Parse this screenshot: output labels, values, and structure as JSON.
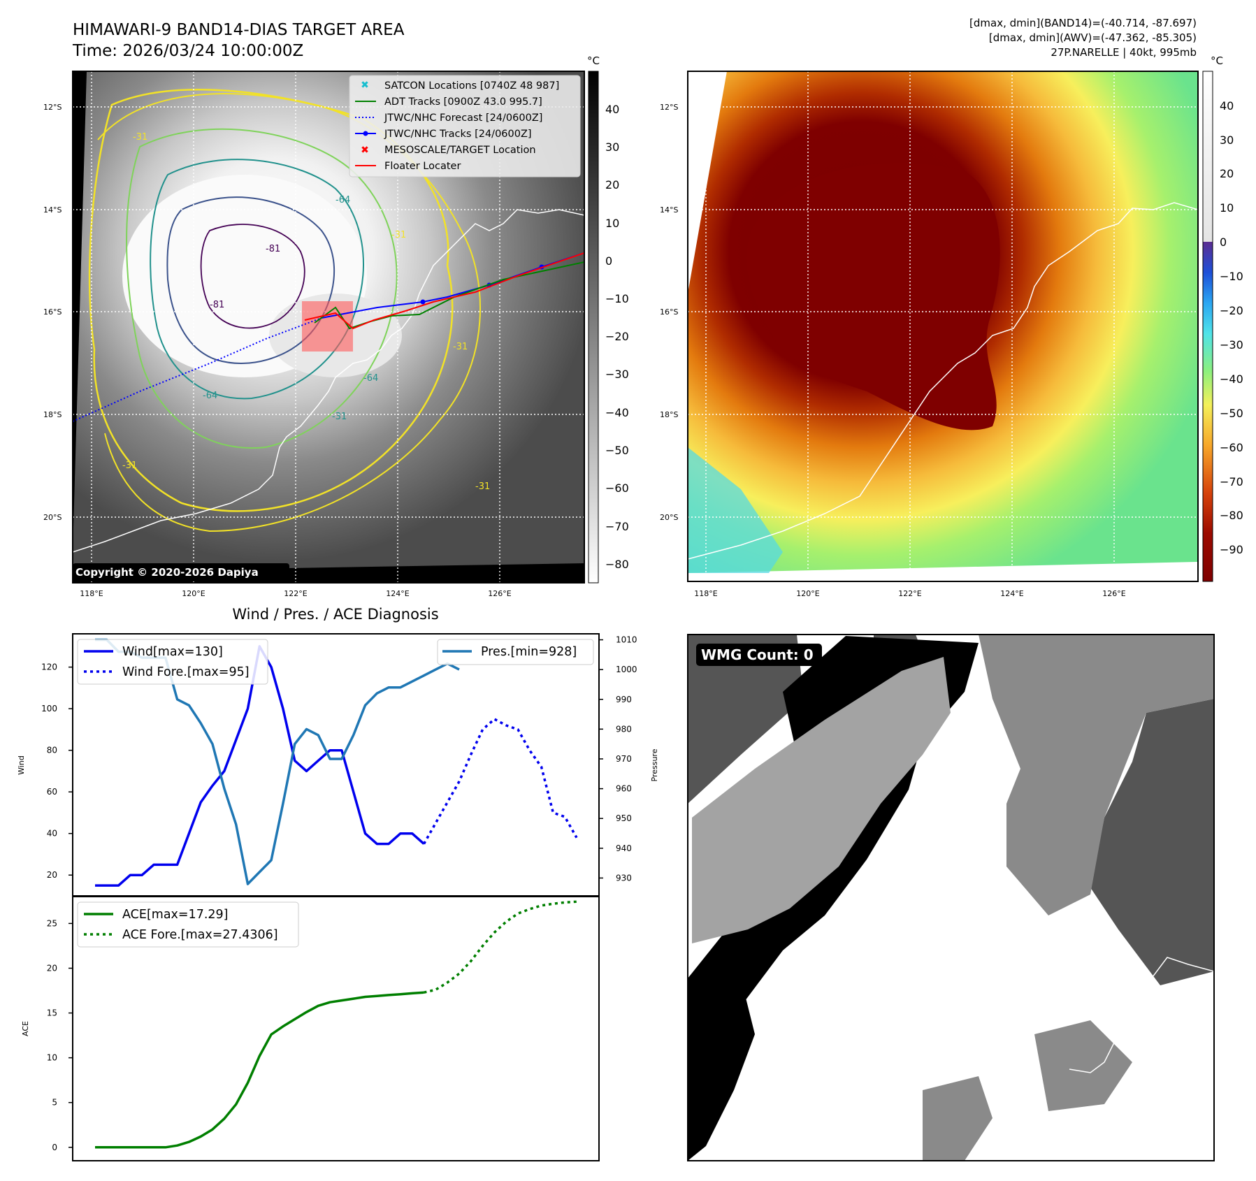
{
  "header": {
    "title_line1": "HIMAWARI-9 BAND14-DIAS TARGET AREA",
    "title_line2": "Time: 2026/03/24 10:00:00Z",
    "info_line1": "[dmax, dmin](BAND14)=(-40.714, -87.697)",
    "info_line2": "[dmax, dmin](AWV)=(-47.362, -85.305)",
    "info_line3": "27P.NARELLE | 40kt, 995mb"
  },
  "copyright": "Copyright © 2020-2026 Dapiya",
  "map_axes": {
    "lat_labels": [
      "12°S",
      "14°S",
      "16°S",
      "18°S",
      "20°S"
    ],
    "lon_labels": [
      "118°E",
      "120°E",
      "122°E",
      "124°E",
      "126°E"
    ]
  },
  "ir_colorbar": {
    "unit": "°C",
    "ticks": [
      "40",
      "30",
      "20",
      "10",
      "0",
      "−10",
      "−20",
      "−30",
      "−40",
      "−50",
      "−60",
      "−70",
      "−80"
    ]
  },
  "wv_colorbar": {
    "unit": "°C",
    "ticks": [
      "40",
      "30",
      "20",
      "10",
      "0",
      "−10",
      "−20",
      "−30",
      "−40",
      "−50",
      "−60",
      "−70",
      "−80",
      "−90"
    ]
  },
  "legend": {
    "satcon": "SATCON Locations [0740Z 48 987]",
    "adt": "ADT Tracks [0900Z 43.0 995.7]",
    "jtwc_forecast": "JTWC/NHC Forecast [24/0600Z]",
    "jtwc_tracks": "JTWC/NHC Tracks [24/0600Z]",
    "meso": "MESOSCALE/TARGET Location",
    "floater": "Floater Locater"
  },
  "contour_labels": [
    "-31",
    "-31",
    "-31",
    "-31",
    "-31",
    "-81",
    "-81",
    "-64",
    "-64",
    "-64",
    "-31"
  ],
  "wmg": {
    "label": "WMG Count: 0"
  },
  "colors": {
    "wind": "#0000ee",
    "pressure": "#1f77b4",
    "ace": "#007f00",
    "adt": "#008000",
    "jtwc": "#0000ff",
    "floater": "#ff0000",
    "satcon": "#17becf"
  },
  "chart_data": [
    {
      "type": "line",
      "title": "Wind / Pres. / ACE Diagnosis",
      "xlabel": "",
      "ylabel": "Wind",
      "ylabel_right": "Pressure",
      "ylim": [
        10,
        136
      ],
      "ylim_right": [
        924,
        1012
      ],
      "yticks": [
        "20",
        "40",
        "60",
        "80",
        "100",
        "120"
      ],
      "yticks_right": [
        "930",
        "940",
        "950",
        "960",
        "970",
        "980",
        "990",
        "1000",
        "1010"
      ],
      "x_range": [
        0,
        41
      ],
      "legend": {
        "wind": "Wind[max=130]",
        "wind_fore": "Wind Fore.[max=95]",
        "pres": "Pres.[min=928]"
      },
      "series": [
        {
          "name": "Wind[max=130]",
          "style": "solid",
          "x": [
            0,
            1,
            2,
            3,
            4,
            5,
            6,
            7,
            8,
            9,
            10,
            11,
            12,
            13,
            14,
            15,
            16,
            17,
            18,
            19,
            20,
            21,
            22,
            23,
            24,
            25,
            26,
            27,
            28
          ],
          "values": [
            15,
            15,
            15,
            20,
            20,
            25,
            25,
            25,
            40,
            55,
            63,
            70,
            85,
            100,
            130,
            120,
            100,
            75,
            70,
            75,
            80,
            80,
            60,
            40,
            35,
            35,
            40,
            40,
            35
          ]
        },
        {
          "name": "Wind Fore.[max=95]",
          "style": "dotted",
          "x": [
            28,
            29,
            30,
            31,
            32,
            33,
            34,
            35,
            36,
            37,
            38,
            39,
            40,
            41
          ],
          "values": [
            35,
            45,
            55,
            65,
            78,
            90,
            95,
            92,
            90,
            80,
            72,
            50,
            48,
            38
          ]
        },
        {
          "name": "Pres.[min=928]",
          "style": "solid",
          "axis": "right",
          "x": [
            0,
            1,
            2,
            3,
            4,
            5,
            6,
            7,
            8,
            9,
            10,
            11,
            12,
            13,
            14,
            15,
            16,
            17,
            18,
            19,
            20,
            21,
            22,
            23,
            24,
            25,
            26,
            27,
            28,
            29,
            30,
            31
          ],
          "values": [
            1010,
            1010,
            1006,
            1006,
            1004,
            1004,
            1004,
            990,
            988,
            982,
            975,
            960,
            948,
            928,
            932,
            936,
            955,
            975,
            980,
            978,
            970,
            970,
            978,
            988,
            992,
            994,
            994,
            996,
            998,
            1000,
            1002,
            1000
          ]
        }
      ]
    },
    {
      "type": "line",
      "title": "",
      "xlabel": "",
      "ylabel": "ACE",
      "ylim": [
        -1.5,
        28
      ],
      "yticks": [
        "0",
        "5",
        "10",
        "15",
        "20",
        "25"
      ],
      "x_range": [
        0,
        41
      ],
      "legend": {
        "ace": "ACE[max=17.29]",
        "ace_fore": "ACE Fore.[max=27.4306]"
      },
      "series": [
        {
          "name": "ACE[max=17.29]",
          "style": "solid",
          "x": [
            0,
            2,
            4,
            6,
            7,
            8,
            9,
            10,
            11,
            12,
            13,
            14,
            15,
            16,
            17,
            18,
            19,
            20,
            21,
            22,
            23,
            24,
            25,
            26,
            27,
            28
          ],
          "values": [
            0,
            0,
            0,
            0,
            0.2,
            0.6,
            1.2,
            2.0,
            3.2,
            4.8,
            7.2,
            10.2,
            12.6,
            13.5,
            14.3,
            15.1,
            15.8,
            16.2,
            16.4,
            16.6,
            16.8,
            16.9,
            17.0,
            17.1,
            17.2,
            17.29
          ]
        },
        {
          "name": "ACE Fore.[max=27.4306]",
          "style": "dotted",
          "x": [
            28,
            29,
            30,
            31,
            32,
            33,
            34,
            35,
            36,
            37,
            38,
            39,
            40,
            41
          ],
          "values": [
            17.29,
            17.6,
            18.4,
            19.4,
            20.8,
            22.5,
            24.0,
            25.2,
            26.1,
            26.6,
            27.0,
            27.2,
            27.35,
            27.43
          ]
        }
      ]
    }
  ]
}
